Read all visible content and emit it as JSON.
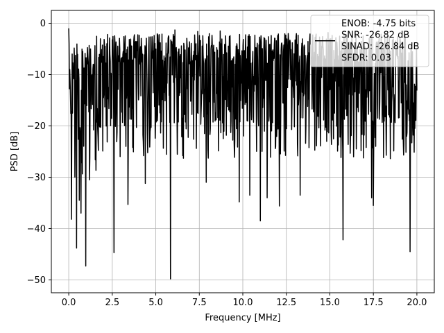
{
  "chart_data": {
    "type": "line",
    "xlabel": "Frequency [MHz]",
    "ylabel": "PSD [dB]",
    "xlim": [
      -1.0,
      21.0
    ],
    "ylim": [
      -52.5,
      2.5
    ],
    "x_ticks": [
      0.0,
      2.5,
      5.0,
      7.5,
      10.0,
      12.5,
      15.0,
      17.5,
      20.0
    ],
    "x_tick_labels": [
      "0.0",
      "2.5",
      "5.0",
      "7.5",
      "10.0",
      "12.5",
      "15.0",
      "17.5",
      "20.0"
    ],
    "y_ticks": [
      0,
      -10,
      -20,
      -30,
      -40,
      -50
    ],
    "y_tick_labels": [
      "0",
      "−10",
      "−20",
      "−30",
      "−40",
      "−50"
    ],
    "grid": true,
    "legend_placement": "top-right",
    "colors": {
      "series": "#000000",
      "grid": "#b0b0b0"
    },
    "series": [
      {
        "name": "ENOB: -4.75 bits\nSNR: -26.82 dB\nSINAD: -26.84 dB\nSFDR: 0.03",
        "x_range": [
          0.0,
          20.0
        ],
        "points_count": 1024,
        "upper_envelope_db": -3.5,
        "typical_db": -14.5,
        "lower_floor_db": -24,
        "initial_points": [
          [
            0.0,
            -1.0
          ],
          [
            0.02,
            -4.0
          ],
          [
            0.05,
            -9.0
          ],
          [
            0.1,
            -14.0
          ],
          [
            0.15,
            -38.0
          ],
          [
            0.2,
            -6.0
          ]
        ],
        "notable_dips": [
          [
            0.15,
            -38.2
          ],
          [
            0.35,
            -30.0
          ],
          [
            0.45,
            -43.8
          ],
          [
            0.6,
            -34.5
          ],
          [
            0.7,
            -37.0
          ],
          [
            0.98,
            -47.3
          ],
          [
            1.2,
            -30.5
          ],
          [
            2.6,
            -44.7
          ],
          [
            3.4,
            -35.3
          ],
          [
            4.4,
            -31.2
          ],
          [
            5.85,
            -49.8
          ],
          [
            7.9,
            -31.0
          ],
          [
            9.8,
            -34.8
          ],
          [
            10.4,
            -33.5
          ],
          [
            11.0,
            -38.5
          ],
          [
            11.4,
            -34.0
          ],
          [
            12.1,
            -35.6
          ],
          [
            13.3,
            -33.5
          ],
          [
            15.75,
            -42.2
          ],
          [
            17.4,
            -34.0
          ],
          [
            17.5,
            -35.5
          ],
          [
            19.6,
            -44.5
          ]
        ],
        "notable_peaks": [
          [
            1.25,
            -5.0
          ],
          [
            6.1,
            -1.3
          ],
          [
            7.4,
            -1.6
          ],
          [
            8.7,
            -1.5
          ],
          [
            14.9,
            -1.8
          ],
          [
            16.5,
            -2.0
          ],
          [
            18.3,
            -2.5
          ]
        ]
      }
    ]
  }
}
